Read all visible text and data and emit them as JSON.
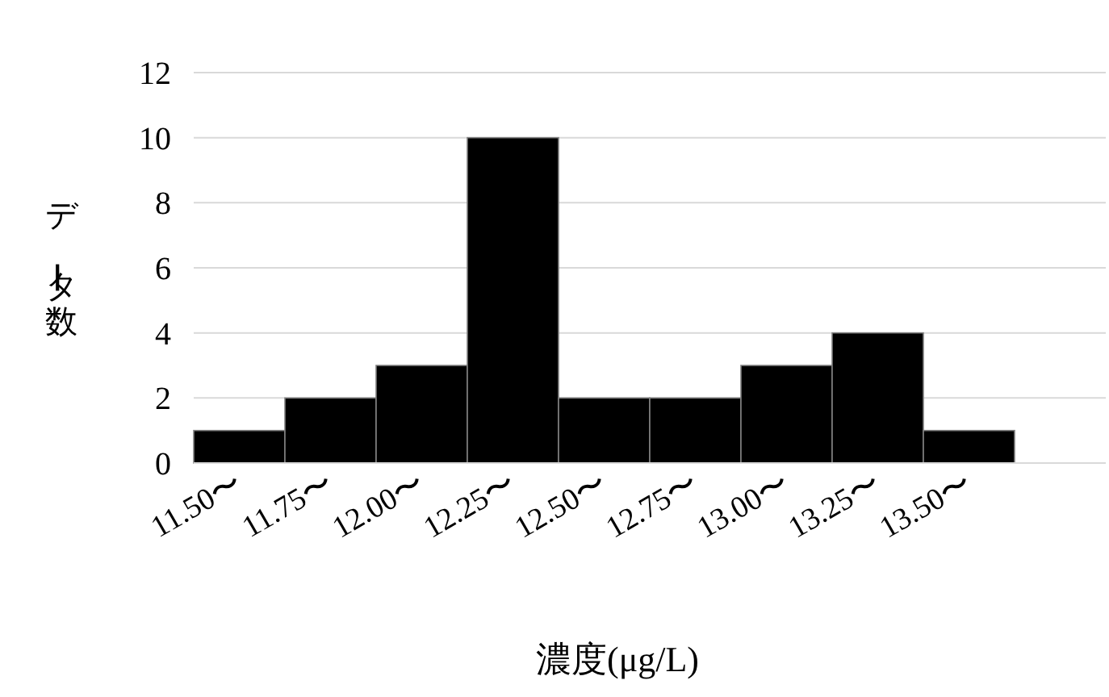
{
  "chart_data": {
    "type": "bar",
    "xlabel": "濃度(μg/L)",
    "ylabel": "データ数",
    "categories": [
      "11.50〜",
      "11.75〜",
      "12.00〜",
      "12.25〜",
      "12.50〜",
      "12.75〜",
      "13.00〜",
      "13.25〜",
      "13.50〜",
      null
    ],
    "values": [
      1,
      2,
      3,
      10,
      2,
      2,
      3,
      4,
      1,
      null
    ],
    "color": "#000000",
    "ylim": [
      0,
      12
    ],
    "yticks": [
      0,
      2,
      4,
      6,
      8,
      10,
      12
    ],
    "grid": "y"
  }
}
